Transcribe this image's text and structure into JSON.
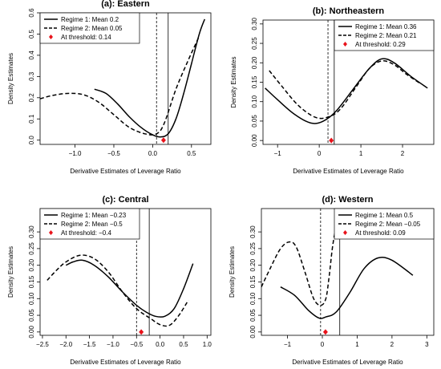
{
  "chart_data": [
    {
      "type": "line",
      "title": "(a): Eastern",
      "xlabel": "Derivative Estimates of Leverage Ratio",
      "ylabel": "Density Estimates",
      "xlim": [
        -1.45,
        0.75
      ],
      "ylim": [
        -0.02,
        0.6
      ],
      "xticks": [
        -1.0,
        -0.5,
        0.0,
        0.5
      ],
      "xtick_labels": [
        "−1.0",
        "−0.5",
        "0.0",
        "0.5"
      ],
      "yticks": [
        0.0,
        0.1,
        0.2,
        0.3,
        0.4,
        0.5,
        0.6
      ],
      "ytick_labels": [
        "0.0",
        "0.1",
        "0.2",
        "0.3",
        "0.4",
        "0.5",
        "0.6"
      ],
      "legend_position": "top-left",
      "legend": [
        "Regime 1: Mean 0.2",
        "Regime 2: Mean 0.05",
        "At threshold: 0.14"
      ],
      "series": [
        {
          "name": "Regime 1: Mean 0.2",
          "style": "solid",
          "x": [
            -0.75,
            -0.6,
            -0.45,
            -0.3,
            -0.15,
            0.0,
            0.1,
            0.2,
            0.3,
            0.4,
            0.5,
            0.6,
            0.67
          ],
          "y": [
            0.24,
            0.22,
            0.17,
            0.11,
            0.06,
            0.025,
            0.015,
            0.03,
            0.1,
            0.22,
            0.36,
            0.5,
            0.57
          ]
        },
        {
          "name": "Regime 2: Mean 0.05",
          "style": "dashed",
          "x": [
            -1.45,
            -1.3,
            -1.1,
            -0.9,
            -0.7,
            -0.5,
            -0.3,
            -0.1,
            0.05,
            0.15,
            0.3,
            0.45,
            0.6
          ],
          "y": [
            0.195,
            0.21,
            0.22,
            0.215,
            0.18,
            0.12,
            0.06,
            0.03,
            0.03,
            0.08,
            0.24,
            0.37,
            0.49
          ]
        }
      ],
      "vlines": [
        {
          "x": 0.05,
          "style": "dashed"
        },
        {
          "x": 0.2,
          "style": "solid"
        }
      ],
      "threshold_point": {
        "x": 0.14,
        "y": 0.0
      }
    },
    {
      "type": "line",
      "title": "(b): Northeastern",
      "xlabel": "Derivative Estimates of Leverage Ratio",
      "ylabel": "Density Estimates",
      "xlim": [
        -1.35,
        2.75
      ],
      "ylim": [
        -0.01,
        0.31
      ],
      "xticks": [
        -1,
        0,
        1,
        2
      ],
      "xtick_labels": [
        "−1",
        "0",
        "1",
        "2"
      ],
      "yticks": [
        0.0,
        0.05,
        0.1,
        0.15,
        0.2,
        0.25,
        0.3
      ],
      "ytick_labels": [
        "0.00",
        "0.05",
        "0.10",
        "0.15",
        "0.20",
        "0.25",
        "0.30"
      ],
      "legend_position": "top-right",
      "legend": [
        "Regime 1: Mean 0.36",
        "Regime 2: Mean 0.21",
        "At threshold: 0.29"
      ],
      "series": [
        {
          "name": "Regime 1: Mean 0.36",
          "style": "solid",
          "x": [
            -1.3,
            -1.0,
            -0.6,
            -0.2,
            0.1,
            0.4,
            0.8,
            1.2,
            1.5,
            1.8,
            2.2,
            2.6
          ],
          "y": [
            0.135,
            0.105,
            0.068,
            0.045,
            0.05,
            0.075,
            0.13,
            0.185,
            0.21,
            0.2,
            0.165,
            0.135
          ]
        },
        {
          "name": "Regime 2: Mean 0.21",
          "style": "dashed",
          "x": [
            -1.2,
            -0.9,
            -0.5,
            -0.1,
            0.2,
            0.5,
            0.9,
            1.2,
            1.5,
            1.8,
            2.1,
            2.45
          ],
          "y": [
            0.18,
            0.14,
            0.09,
            0.06,
            0.06,
            0.08,
            0.14,
            0.185,
            0.205,
            0.195,
            0.17,
            0.145
          ]
        }
      ],
      "vlines": [
        {
          "x": 0.21,
          "style": "dashed"
        },
        {
          "x": 0.36,
          "style": "solid"
        }
      ],
      "threshold_point": {
        "x": 0.29,
        "y": 0.0
      }
    },
    {
      "type": "line",
      "title": "(c): Central",
      "xlabel": "Derivative Estimates of Leverage Ratio",
      "ylabel": "Density Estimates",
      "xlim": [
        -2.55,
        1.08
      ],
      "ylim": [
        -0.01,
        0.37
      ],
      "xticks": [
        -2.5,
        -2.0,
        -1.5,
        -1.0,
        -0.5,
        0.0,
        0.5,
        1.0
      ],
      "xtick_labels": [
        "−2.5",
        "−2.0",
        "−1.5",
        "−1.0",
        "−0.5",
        "0.0",
        "0.5",
        "1.0"
      ],
      "yticks": [
        0.0,
        0.05,
        0.1,
        0.15,
        0.2,
        0.25,
        0.3
      ],
      "ytick_labels": [
        "0.00",
        "0.05",
        "0.10",
        "0.15",
        "0.20",
        "0.25",
        "0.30"
      ],
      "legend_position": "top-left",
      "legend": [
        "Regime 1: Mean −0.23",
        "Regime 2: Mean −0.5",
        "At threshold: −0.4"
      ],
      "series": [
        {
          "name": "Regime 1: Mean −0.23",
          "style": "solid",
          "x": [
            -2.0,
            -1.85,
            -1.65,
            -1.4,
            -1.1,
            -0.8,
            -0.5,
            -0.3,
            -0.1,
            0.1,
            0.3,
            0.5,
            0.7
          ],
          "y": [
            0.2,
            0.21,
            0.215,
            0.2,
            0.165,
            0.12,
            0.08,
            0.06,
            0.047,
            0.047,
            0.07,
            0.13,
            0.205
          ]
        },
        {
          "name": "Regime 2: Mean −0.5",
          "style": "dashed",
          "x": [
            -2.4,
            -2.2,
            -2.0,
            -1.7,
            -1.4,
            -1.1,
            -0.8,
            -0.5,
            -0.2,
            0.0,
            0.2,
            0.4,
            0.6
          ],
          "y": [
            0.155,
            0.185,
            0.21,
            0.23,
            0.22,
            0.18,
            0.12,
            0.07,
            0.04,
            0.022,
            0.02,
            0.05,
            0.095
          ]
        }
      ],
      "vlines": [
        {
          "x": -0.5,
          "style": "dashed"
        },
        {
          "x": -0.23,
          "style": "solid"
        }
      ],
      "threshold_point": {
        "x": -0.4,
        "y": 0.0
      }
    },
    {
      "type": "line",
      "title": "(d): Western",
      "xlabel": "Derivative Estimates of Leverage Ratio",
      "ylabel": "Density Estimates",
      "xlim": [
        -1.75,
        3.2
      ],
      "ylim": [
        -0.01,
        0.37
      ],
      "xticks": [
        -1,
        0,
        1,
        2,
        3
      ],
      "xtick_labels": [
        "−1",
        "0",
        "1",
        "2",
        "3"
      ],
      "yticks": [
        0.0,
        0.05,
        0.1,
        0.15,
        0.2,
        0.25,
        0.3
      ],
      "ytick_labels": [
        "0.00",
        "0.05",
        "0.10",
        "0.15",
        "0.20",
        "0.25",
        "0.30"
      ],
      "legend_position": "top-right",
      "legend": [
        "Regime 1: Mean 0.5",
        "Regime 2: Mean −0.05",
        "At threshold: 0.09"
      ],
      "series": [
        {
          "name": "Regime 1: Mean 0.5",
          "style": "solid",
          "x": [
            -1.2,
            -0.8,
            -0.4,
            -0.1,
            0.1,
            0.4,
            0.8,
            1.2,
            1.6,
            2.0,
            2.6
          ],
          "y": [
            0.135,
            0.11,
            0.065,
            0.042,
            0.045,
            0.06,
            0.12,
            0.19,
            0.222,
            0.215,
            0.17
          ]
        },
        {
          "name": "Regime 2: Mean −0.05",
          "style": "dashed",
          "x": [
            -1.75,
            -1.5,
            -1.2,
            -0.95,
            -0.75,
            -0.5,
            -0.25,
            -0.05,
            0.1,
            0.2,
            0.3,
            0.45
          ],
          "y": [
            0.135,
            0.19,
            0.25,
            0.27,
            0.255,
            0.18,
            0.1,
            0.08,
            0.1,
            0.17,
            0.26,
            0.35
          ]
        }
      ],
      "vlines": [
        {
          "x": -0.05,
          "style": "dashed"
        },
        {
          "x": 0.5,
          "style": "solid"
        }
      ],
      "threshold_point": {
        "x": 0.09,
        "y": 0.0
      }
    }
  ]
}
